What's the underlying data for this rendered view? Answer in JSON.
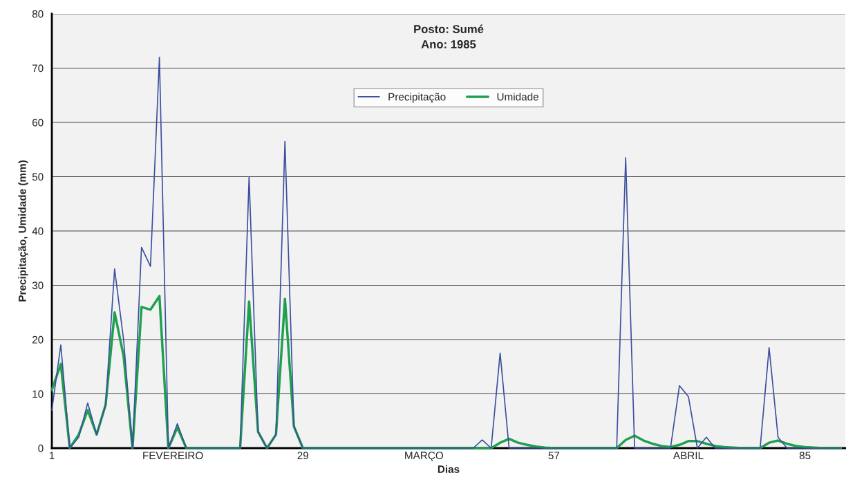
{
  "chart_data": {
    "type": "line",
    "title": "Posto: Sumé",
    "subtitle": "Ano: 1985",
    "xlabel": "Dias",
    "ylabel": "Precipitação, Umidade (mm)",
    "x": [
      1,
      2,
      3,
      4,
      5,
      6,
      7,
      8,
      9,
      10,
      11,
      12,
      13,
      14,
      15,
      16,
      17,
      18,
      19,
      20,
      21,
      22,
      23,
      24,
      25,
      26,
      27,
      28,
      29,
      30,
      31,
      32,
      33,
      34,
      35,
      36,
      37,
      38,
      39,
      40,
      41,
      42,
      43,
      44,
      45,
      46,
      47,
      48,
      49,
      50,
      51,
      52,
      53,
      54,
      55,
      56,
      57,
      58,
      59,
      60,
      61,
      62,
      63,
      64,
      65,
      66,
      67,
      68,
      69,
      70,
      71,
      72,
      73,
      74,
      75,
      76,
      77,
      78,
      79,
      80,
      81,
      82,
      83,
      84,
      85,
      86,
      87,
      88,
      89
    ],
    "series": [
      {
        "name": "Precipitação",
        "color": "#3b4f9e",
        "values": [
          7,
          19,
          0,
          2,
          8.3,
          2.5,
          8,
          33,
          20,
          0,
          37,
          33.5,
          72,
          0,
          4.5,
          0,
          0,
          0,
          0,
          0,
          0,
          0,
          50,
          3,
          0,
          2.5,
          56.5,
          4,
          0,
          0,
          0,
          0,
          0,
          0,
          0,
          0,
          0,
          0,
          0,
          0,
          0,
          0,
          0,
          0,
          0,
          0,
          0,
          0,
          1.5,
          0,
          17.5,
          0,
          0,
          0,
          0,
          0,
          0,
          0,
          0,
          0,
          0,
          0,
          0,
          0,
          53.5,
          0,
          0,
          0,
          0,
          0,
          11.5,
          9.5,
          0,
          2,
          0,
          0,
          0,
          0,
          0,
          0,
          18.5,
          2,
          0,
          0,
          0,
          0,
          0,
          0,
          0
        ]
      },
      {
        "name": "Umidade",
        "color": "#1fa04f",
        "values": [
          10.7,
          15.5,
          0,
          2.5,
          7,
          2.5,
          8,
          25,
          17,
          0,
          26,
          25.5,
          28,
          0,
          3.8,
          0,
          0,
          0,
          0,
          0,
          0,
          0,
          27,
          3,
          0,
          2.5,
          27.5,
          4,
          0,
          0,
          0,
          0,
          0,
          0,
          0,
          0,
          0,
          0,
          0,
          0,
          0,
          0,
          0,
          0,
          0,
          0,
          0,
          0,
          0,
          0,
          1,
          1.7,
          1,
          0.6,
          0.3,
          0.1,
          0,
          0,
          0,
          0,
          0,
          0,
          0,
          0,
          1.5,
          2.3,
          1.4,
          0.8,
          0.4,
          0.2,
          0.6,
          1.3,
          1.3,
          0.8,
          0.4,
          0.2,
          0.1,
          0,
          0,
          0,
          1,
          1.4,
          0.8,
          0.4,
          0.2,
          0.1,
          0,
          0,
          0
        ]
      }
    ],
    "xlim": [
      1,
      89.5
    ],
    "xticks": [
      1,
      {
        "value": 14.5,
        "label": "FEVEREIRO"
      },
      29,
      {
        "value": 42.5,
        "label": "MARÇO"
      },
      57,
      {
        "value": 72,
        "label": "ABRIL"
      },
      85
    ],
    "ylim": [
      0,
      80
    ],
    "yticks": [
      0,
      10,
      20,
      30,
      40,
      50,
      60,
      70,
      80
    ],
    "grid": "y",
    "legend": "top",
    "marker": "none",
    "line_style": "solid"
  }
}
